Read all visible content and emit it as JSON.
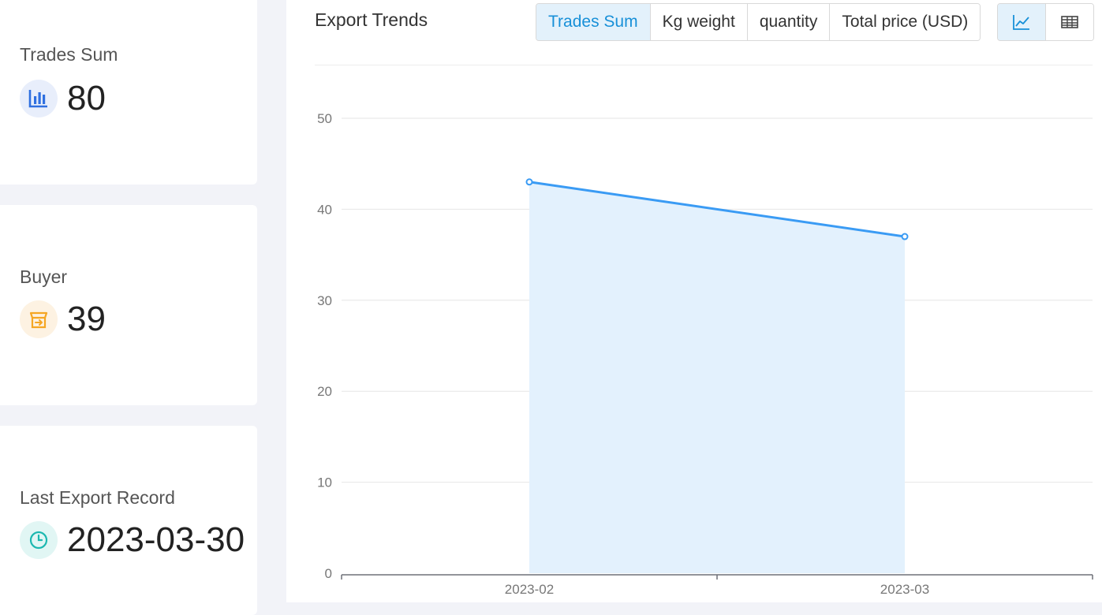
{
  "stats": {
    "trades_sum": {
      "label": "Trades Sum",
      "value": "80",
      "icon": "bar-chart-icon",
      "color": "#2f6fe0"
    },
    "buyer": {
      "label": "Buyer",
      "value": "39",
      "icon": "storefront-icon",
      "color": "#f5a623"
    },
    "last_export": {
      "label": "Last Export Record",
      "value": "2023-03-30",
      "icon": "clock-icon",
      "color": "#1cb8b0"
    }
  },
  "chart_panel": {
    "title": "Export Trends",
    "tabs": [
      {
        "label": "Trades Sum",
        "active": true
      },
      {
        "label": "Kg weight",
        "active": false
      },
      {
        "label": "quantity",
        "active": false
      },
      {
        "label": "Total price (USD)",
        "active": false
      }
    ],
    "views": [
      {
        "icon": "line-chart-icon",
        "active": true
      },
      {
        "icon": "table-icon",
        "active": false
      }
    ]
  },
  "chart_data": {
    "type": "area",
    "categories": [
      "2023-02",
      "2023-03"
    ],
    "values": [
      43,
      37
    ],
    "title": "",
    "xlabel": "",
    "ylabel": "",
    "ylim": [
      0,
      50
    ],
    "yticks": [
      0,
      10,
      20,
      30,
      40,
      50
    ],
    "grid": true,
    "line_color": "#3a9bf4",
    "fill_color": "#e3f1fd"
  }
}
